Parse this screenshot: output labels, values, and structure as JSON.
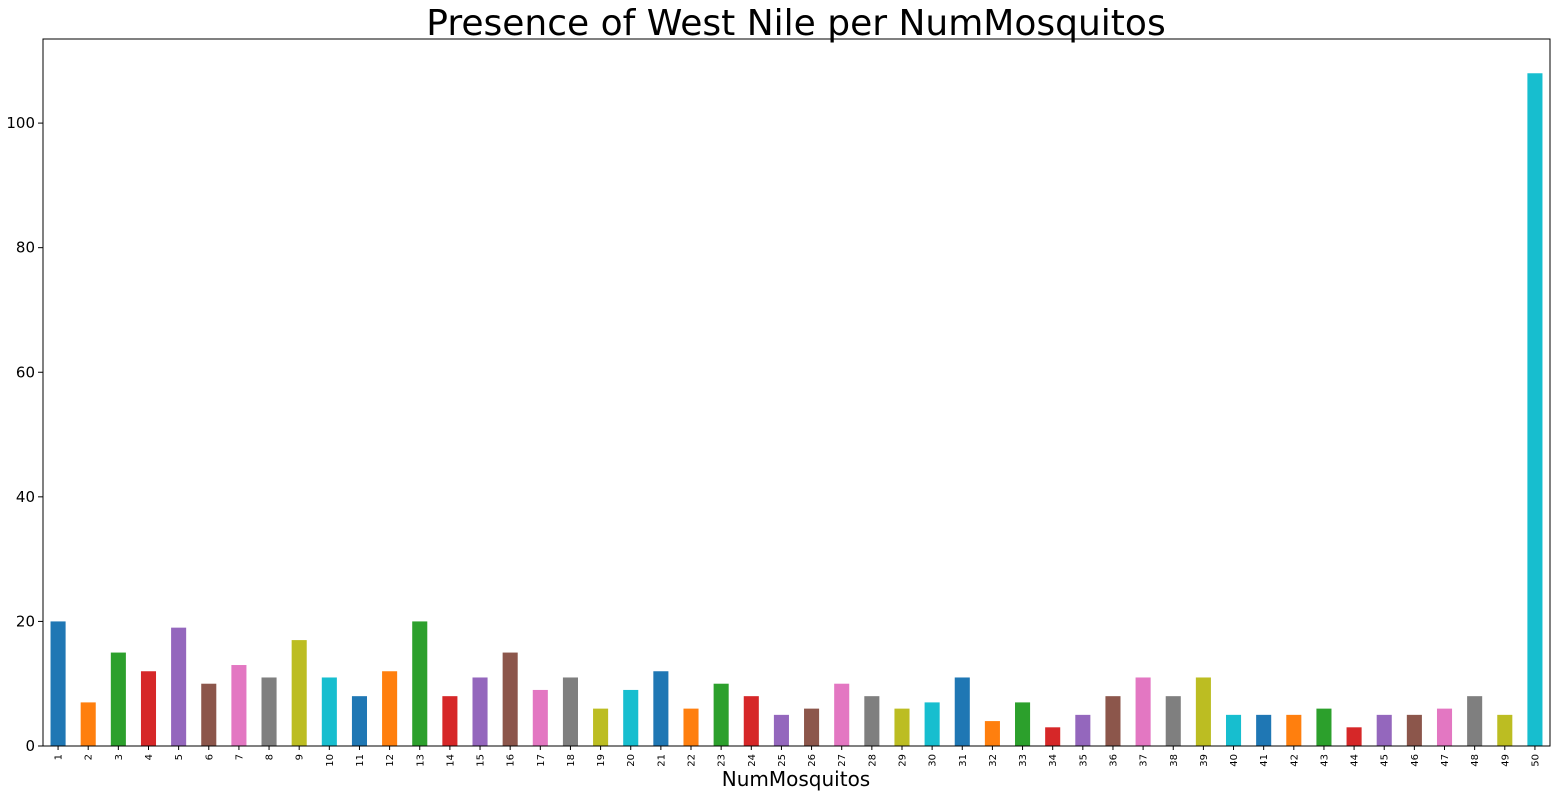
{
  "chart_data": {
    "type": "bar",
    "title": "Presence of West Nile per NumMosquitos",
    "xlabel": "NumMosquitos",
    "ylabel": "",
    "ylim": [
      0,
      113.5
    ],
    "yticks": [
      0,
      20,
      40,
      60,
      80,
      100
    ],
    "grid": false,
    "legend": "none",
    "categories": [
      "1",
      "2",
      "3",
      "4",
      "5",
      "6",
      "7",
      "8",
      "9",
      "10",
      "11",
      "12",
      "13",
      "14",
      "15",
      "16",
      "17",
      "18",
      "19",
      "20",
      "21",
      "22",
      "23",
      "24",
      "25",
      "26",
      "27",
      "28",
      "29",
      "30",
      "31",
      "32",
      "33",
      "34",
      "35",
      "36",
      "37",
      "38",
      "39",
      "40",
      "41",
      "42",
      "43",
      "44",
      "45",
      "46",
      "47",
      "48",
      "49",
      "50"
    ],
    "values": [
      20,
      7,
      15,
      12,
      19,
      10,
      13,
      11,
      17,
      11,
      8,
      12,
      20,
      8,
      11,
      15,
      9,
      11,
      6,
      9,
      12,
      6,
      10,
      8,
      5,
      6,
      10,
      8,
      6,
      7,
      11,
      4,
      7,
      3,
      5,
      8,
      11,
      8,
      11,
      5,
      5,
      5,
      6,
      3,
      5,
      5,
      6,
      8,
      5,
      108
    ],
    "colors": [
      "#1f77b4",
      "#ff7f0e",
      "#2ca02c",
      "#d62728",
      "#9467bd",
      "#8c564b",
      "#e377c2",
      "#7f7f7f",
      "#bcbd22",
      "#17becf"
    ]
  }
}
